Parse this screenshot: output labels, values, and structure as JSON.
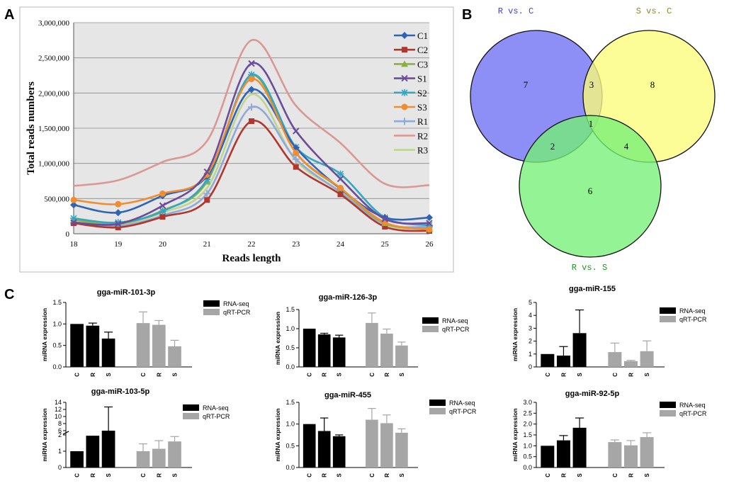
{
  "panels": {
    "A": "A",
    "B": "B",
    "C": "C"
  },
  "chart_data": [
    {
      "type": "line",
      "title": "",
      "xlabel": "Reads length",
      "ylabel": "Total reads numbers",
      "x": [
        18,
        19,
        20,
        21,
        22,
        23,
        24,
        25,
        26
      ],
      "xticks": [
        "18",
        "19",
        "20",
        "21",
        "22",
        "23",
        "24",
        "25",
        "26"
      ],
      "ylim": [
        0,
        3000000
      ],
      "yticks": [
        "0",
        "500,000",
        "1,000,000",
        "1,500,000",
        "2,000,000",
        "2,500,000",
        "3,000,000"
      ],
      "grid": true,
      "legend": "right",
      "series": [
        {
          "name": "C1",
          "color": "#2f63b5",
          "marker": "diamond",
          "values": [
            410000,
            300000,
            540000,
            820000,
            2050000,
            1220000,
            640000,
            230000,
            230000
          ]
        },
        {
          "name": "C2",
          "color": "#b0362e",
          "marker": "square",
          "values": [
            150000,
            90000,
            240000,
            480000,
            1600000,
            950000,
            560000,
            100000,
            40000
          ]
        },
        {
          "name": "C3",
          "color": "#8ab03e",
          "marker": "triangle",
          "values": [
            200000,
            140000,
            330000,
            740000,
            2250000,
            1150000,
            640000,
            150000,
            70000
          ]
        },
        {
          "name": "S1",
          "color": "#6a4c9c",
          "marker": "x",
          "values": [
            160000,
            140000,
            400000,
            880000,
            2420000,
            1460000,
            780000,
            210000,
            150000
          ]
        },
        {
          "name": "S2",
          "color": "#34a6c4",
          "marker": "star",
          "values": [
            220000,
            160000,
            320000,
            770000,
            2260000,
            1230000,
            850000,
            230000,
            120000
          ]
        },
        {
          "name": "S3",
          "color": "#ef8d33",
          "marker": "circle",
          "values": [
            480000,
            420000,
            570000,
            840000,
            2200000,
            1150000,
            650000,
            160000,
            60000
          ]
        },
        {
          "name": "R1",
          "color": "#8fa9d8",
          "marker": "plus",
          "values": [
            150000,
            110000,
            260000,
            570000,
            1800000,
            1060000,
            590000,
            140000,
            100000
          ]
        },
        {
          "name": "R2",
          "color": "#d99896",
          "marker": "none",
          "values": [
            680000,
            760000,
            1020000,
            1320000,
            2750000,
            1820000,
            1290000,
            710000,
            690000
          ]
        },
        {
          "name": "R3",
          "color": "#bfd58d",
          "marker": "none",
          "values": [
            170000,
            130000,
            300000,
            650000,
            1980000,
            1040000,
            600000,
            130000,
            80000
          ]
        }
      ]
    },
    {
      "type": "venn",
      "sets": [
        "R vs. C",
        "S vs. C",
        "R vs. S"
      ],
      "set_colors": [
        "#6e6ef5",
        "#fdfd7a",
        "#76f076"
      ],
      "label_colors": [
        "#3f3fd8",
        "#8a8a1e",
        "#1a9a1a"
      ],
      "regions": {
        "R_only": "7",
        "S_only": "8",
        "RS_only": "6",
        "R_S": "3",
        "R_RS": "2",
        "S_RS": "4",
        "all": "1"
      }
    },
    {
      "type": "bar",
      "title": "gga-miR-101-3p",
      "ylabel": "miRNA expression",
      "ylim": [
        0,
        1.5
      ],
      "yticks": [
        "0.0",
        "0.5",
        "1.0",
        "1.5"
      ],
      "categories": [
        "C",
        "R",
        "S"
      ],
      "series": [
        {
          "name": "RNA-seq",
          "color": "#000000",
          "values": [
            1.0,
            0.96,
            0.66
          ],
          "errors": [
            0,
            0.06,
            0.15
          ]
        },
        {
          "name": "qRT-PCR",
          "color": "#a6a6a6",
          "values": [
            1.02,
            0.98,
            0.48
          ],
          "errors": [
            0.26,
            0.1,
            0.14
          ]
        }
      ]
    },
    {
      "type": "bar",
      "title": "gga-miR-126-3p",
      "ylabel": "miRNA expression",
      "ylim": [
        0,
        1.5
      ],
      "yticks": [
        "0.0",
        "0.5",
        "1.0",
        "1.5"
      ],
      "categories": [
        "C",
        "R",
        "S"
      ],
      "series": [
        {
          "name": "RNA-seq",
          "color": "#000000",
          "values": [
            1.0,
            0.85,
            0.77
          ],
          "errors": [
            0,
            0.03,
            0.06
          ]
        },
        {
          "name": "qRT-PCR",
          "color": "#a6a6a6",
          "values": [
            1.15,
            0.87,
            0.56
          ],
          "errors": [
            0.26,
            0.12,
            0.09
          ]
        }
      ]
    },
    {
      "type": "bar",
      "title": "gga-miR-155",
      "ylabel": "miRNA expression",
      "ylim": [
        0,
        5
      ],
      "yticks": [
        "0",
        "1",
        "2",
        "3",
        "4",
        "5"
      ],
      "categories": [
        "C",
        "R",
        "S"
      ],
      "series": [
        {
          "name": "RNA-seq",
          "color": "#000000",
          "values": [
            1.0,
            0.88,
            2.62
          ],
          "errors": [
            0,
            0.7,
            1.8
          ]
        },
        {
          "name": "qRT-PCR",
          "color": "#a6a6a6",
          "values": [
            1.15,
            0.45,
            1.22
          ],
          "errors": [
            0.7,
            0.06,
            0.8
          ]
        }
      ]
    },
    {
      "type": "bar",
      "title": "gga-miR-103-5p",
      "ylabel": "miRNA expression",
      "broken_axis": true,
      "yticks": [
        "0",
        "1",
        "2",
        "6",
        "8",
        "10",
        "12",
        "14"
      ],
      "categories": [
        "C",
        "R",
        "S"
      ],
      "series": [
        {
          "name": "RNA-seq",
          "color": "#000000",
          "values": [
            1.0,
            1.95,
            6.0
          ],
          "errors": [
            0,
            0.7,
            6.7
          ]
        },
        {
          "name": "qRT-PCR",
          "color": "#a6a6a6",
          "values": [
            1.0,
            1.15,
            1.6
          ],
          "errors": [
            0.45,
            0.5,
            0.3
          ]
        }
      ]
    },
    {
      "type": "bar",
      "title": "gga-miR-455",
      "ylabel": "miRNA expression",
      "ylim": [
        0,
        1.5
      ],
      "yticks": [
        "0.0",
        "0.5",
        "1.0",
        "1.5"
      ],
      "categories": [
        "C",
        "R",
        "S"
      ],
      "series": [
        {
          "name": "RNA-seq",
          "color": "#000000",
          "values": [
            1.0,
            0.84,
            0.72
          ],
          "errors": [
            0,
            0.3,
            0.03
          ]
        },
        {
          "name": "qRT-PCR",
          "color": "#a6a6a6",
          "values": [
            1.1,
            1.02,
            0.8
          ],
          "errors": [
            0.26,
            0.19,
            0.09
          ]
        }
      ]
    },
    {
      "type": "bar",
      "title": "gga-miR-92-5p",
      "ylabel": "miRNA expression",
      "ylim": [
        0,
        3
      ],
      "yticks": [
        "0.0",
        "0.5",
        "1.0",
        "1.5",
        "2.0",
        "2.5",
        "3.0"
      ],
      "categories": [
        "C",
        "R",
        "S"
      ],
      "series": [
        {
          "name": "RNA-seq",
          "color": "#000000",
          "values": [
            1.0,
            1.25,
            1.83
          ],
          "errors": [
            0,
            0.22,
            0.45
          ]
        },
        {
          "name": "qRT-PCR",
          "color": "#a6a6a6",
          "values": [
            1.17,
            1.02,
            1.4
          ],
          "errors": [
            0.1,
            0.22,
            0.2
          ]
        }
      ]
    }
  ]
}
